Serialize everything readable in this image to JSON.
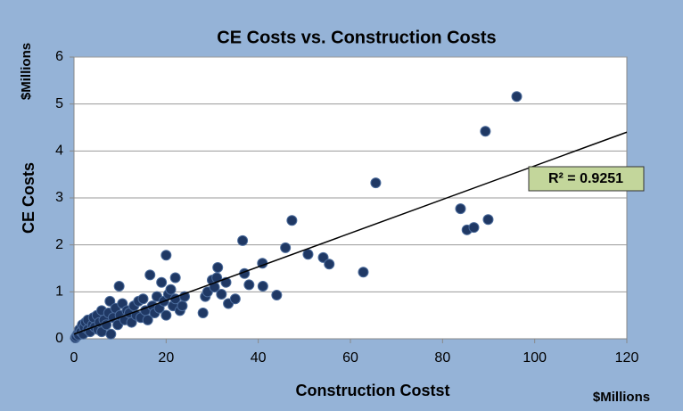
{
  "chart_data": {
    "type": "scatter",
    "title": "CE Costs vs. Construction Costs",
    "y_label": "CE Costs",
    "y_unit": "$Millions",
    "x_label": "Construction Costst",
    "x_unit": "$Millions",
    "annotation": "R² = 0.9251",
    "color": "#1f3864",
    "xlim": [
      0,
      120
    ],
    "xticks": [
      0,
      20,
      40,
      60,
      80,
      100,
      120
    ],
    "ylim": [
      0,
      6
    ],
    "yticks": [
      0,
      1,
      2,
      3,
      4,
      5,
      6
    ],
    "grid": true,
    "x": [
      0.3,
      0.5,
      0.8,
      1,
      1.2,
      1.5,
      1.8,
      2,
      2.2,
      2.5,
      3,
      3,
      3.5,
      4,
      4.2,
      4.5,
      5,
      5.2,
      5.5,
      6,
      6,
      6.5,
      7,
      7.5,
      7.8,
      8,
      8.5,
      9,
      9.5,
      9.8,
      10,
      10.5,
      11,
      11.5,
      12,
      12.5,
      13,
      13.5,
      14,
      14.5,
      15,
      15.5,
      16,
      16.5,
      17,
      17.5,
      18,
      18.5,
      19,
      19.5,
      20,
      20,
      20.5,
      21,
      21.5,
      22,
      22,
      23,
      23.5,
      24,
      28,
      28.5,
      29,
      30,
      30.5,
      31,
      32,
      33,
      33.5,
      35,
      38,
      41,
      44,
      31.2,
      37,
      40.9,
      36.6,
      45.9,
      47.3,
      50.8,
      54.1,
      55.4,
      62.8,
      65.5,
      83.9,
      85.3,
      86.8,
      89.9,
      89.3,
      96.1
    ],
    "values": [
      0.02,
      0.05,
      0.1,
      0.08,
      0.2,
      0.15,
      0.3,
      0.1,
      0.25,
      0.35,
      0.2,
      0.4,
      0.15,
      0.3,
      0.45,
      0.25,
      0.5,
      0.2,
      0.35,
      0.6,
      0.15,
      0.4,
      0.3,
      0.55,
      0.8,
      0.1,
      0.45,
      0.65,
      0.3,
      1.12,
      0.5,
      0.75,
      0.4,
      0.6,
      0.55,
      0.35,
      0.7,
      0.5,
      0.8,
      0.45,
      0.85,
      0.6,
      0.4,
      1.36,
      0.7,
      0.55,
      0.9,
      0.65,
      1.2,
      0.8,
      1.78,
      0.5,
      0.95,
      1.05,
      0.7,
      1.3,
      0.85,
      0.6,
      0.7,
      0.9,
      0.55,
      0.9,
      1.0,
      1.25,
      1.1,
      1.3,
      0.95,
      1.2,
      0.75,
      0.85,
      1.15,
      1.12,
      0.93,
      1.52,
      1.39,
      1.61,
      2.09,
      1.94,
      2.52,
      1.8,
      1.73,
      1.59,
      1.42,
      3.32,
      2.77,
      2.32,
      2.37,
      2.54,
      4.42,
      5.16
    ],
    "trendline": {
      "x": [
        0,
        120
      ],
      "values": [
        0.1,
        4.4
      ]
    }
  }
}
